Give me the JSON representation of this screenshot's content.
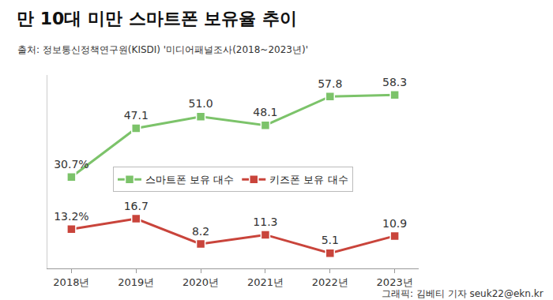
{
  "chart_data": {
    "type": "line",
    "title": "만 10대 미만 스마트폰 보유율 추이",
    "subtitle": "출처: 정보통신정책연구원(KISDI) '미디어패널조사(2018~2023년)'",
    "annotations": [
      "그래픽: 김베티 기자 seuk22@ekn.kr"
    ],
    "categories": [
      "2018년",
      "2019년",
      "2020년",
      "2021년",
      "2022년",
      "2023년"
    ],
    "series": [
      {
        "name": "스마트폰 보유 대수",
        "color": "#7cc36a",
        "marker": "square",
        "values": [
          30.7,
          47.1,
          51.0,
          48.1,
          57.8,
          58.3
        ],
        "value_labels": [
          "30.7%",
          "47.1",
          "51.0",
          "48.1",
          "57.8",
          "58.3"
        ]
      },
      {
        "name": "키즈폰 보유 대수",
        "color": "#c9443b",
        "marker": "square",
        "values": [
          13.2,
          16.7,
          8.2,
          11.3,
          5.1,
          10.9
        ],
        "value_labels": [
          "13.2%",
          "16.7",
          "8.2",
          "11.3",
          "5.1",
          "10.9"
        ]
      }
    ],
    "ylim": [
      0,
      65
    ],
    "grid": false,
    "legend": "center",
    "data_labels": true,
    "tick_labels": "x"
  }
}
